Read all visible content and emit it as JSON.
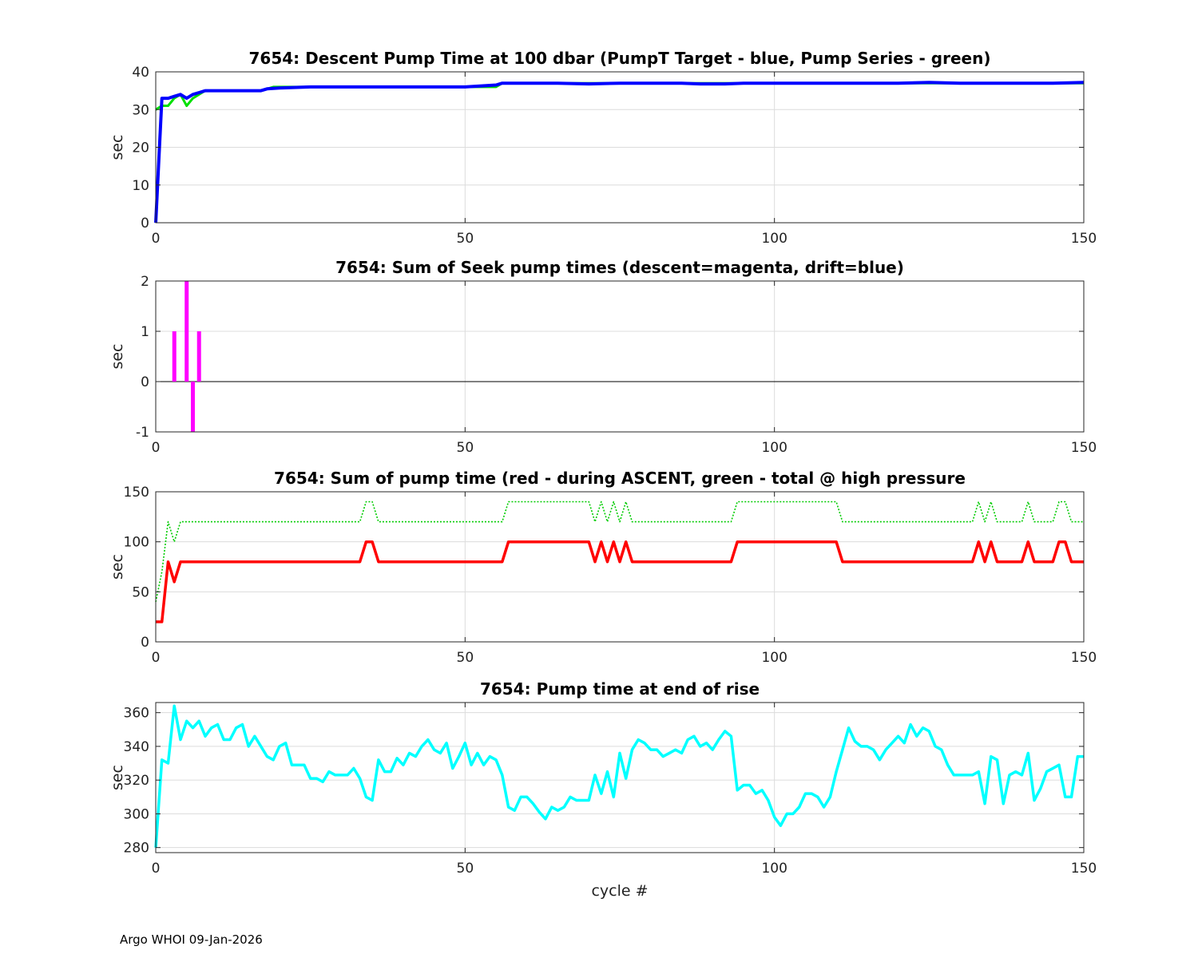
{
  "figure": {
    "footer": "Argo WHOI 09-Jan-2026"
  },
  "chart_data": [
    {
      "type": "line",
      "title": "7654: Descent Pump Time at 100 dbar (PumpT Target - blue, Pump Series - green)",
      "xlabel": "",
      "ylabel": "sec",
      "xlim": [
        0,
        150
      ],
      "ylim": [
        0,
        40
      ],
      "xticks": [
        0,
        50,
        100,
        150
      ],
      "yticks": [
        0,
        10,
        20,
        30,
        40
      ],
      "grid": true,
      "series": [
        {
          "color": "#00e000",
          "width": 3,
          "style": "solid",
          "x": [
            0,
            1,
            2,
            3,
            4,
            5,
            6,
            7,
            8,
            10,
            12,
            15,
            17,
            18,
            19,
            20,
            25,
            30,
            35,
            40,
            45,
            50,
            55,
            56,
            60,
            70,
            80,
            85,
            90,
            95,
            100,
            110,
            120,
            125,
            130,
            140,
            150
          ],
          "y": [
            30,
            31,
            31,
            33,
            34,
            31,
            33,
            34,
            35,
            35,
            35,
            35,
            35,
            35.5,
            36,
            36,
            36,
            36,
            36,
            36,
            36,
            36,
            36,
            37,
            37,
            37,
            37,
            37,
            37,
            37,
            37,
            37,
            37,
            37,
            37,
            37,
            37
          ]
        },
        {
          "color": "#0000ff",
          "width": 4,
          "style": "solid",
          "x": [
            0,
            1,
            2,
            3,
            4,
            5,
            6,
            7,
            8,
            10,
            12,
            15,
            17,
            18,
            20,
            25,
            30,
            35,
            40,
            45,
            50,
            55,
            56,
            60,
            65,
            70,
            75,
            80,
            85,
            88,
            90,
            92,
            95,
            100,
            105,
            110,
            115,
            120,
            125,
            130,
            135,
            140,
            145,
            150
          ],
          "y": [
            0,
            33,
            33,
            33.5,
            34,
            33,
            34,
            34.5,
            35,
            35,
            35,
            35,
            35,
            35.5,
            35.7,
            36,
            36,
            36,
            36,
            36,
            36,
            36.5,
            37,
            37,
            37,
            36.8,
            37,
            37,
            37,
            36.8,
            36.8,
            36.8,
            37,
            37,
            37,
            37,
            37,
            37,
            37.2,
            37,
            37,
            37,
            37,
            37.2
          ]
        }
      ]
    },
    {
      "type": "bar",
      "title": "7654: Sum of Seek pump times (descent=magenta, drift=blue)",
      "xlabel": "",
      "ylabel": "sec",
      "xlim": [
        0,
        150
      ],
      "ylim": [
        -1,
        2
      ],
      "xticks": [
        0,
        50,
        100,
        150
      ],
      "yticks": [
        -1,
        0,
        1,
        2
      ],
      "grid": true,
      "series": [
        {
          "color": "#ff00ff",
          "x": [
            3,
            5,
            6,
            7
          ],
          "y": [
            1,
            2,
            -1,
            1
          ]
        }
      ]
    },
    {
      "type": "line",
      "title": "7654: Sum of pump time (red - during ASCENT, green - total @ high pressure",
      "xlabel": "",
      "ylabel": "sec",
      "xlim": [
        0,
        150
      ],
      "ylim": [
        0,
        150
      ],
      "xticks": [
        0,
        50,
        100,
        150
      ],
      "yticks": [
        0,
        50,
        100,
        150
      ],
      "grid": true,
      "series": [
        {
          "color": "#00cc00",
          "width": 1.6,
          "style": "dotted",
          "x": [
            0,
            1,
            2,
            3,
            4,
            5,
            33,
            34,
            35,
            36,
            56,
            57,
            70,
            71,
            72,
            73,
            74,
            75,
            76,
            77,
            93,
            94,
            110,
            111,
            132,
            133,
            134,
            135,
            136,
            137,
            140,
            141,
            142,
            145,
            146,
            147,
            148,
            150
          ],
          "y": [
            40,
            70,
            120,
            100,
            120,
            120,
            120,
            140,
            140,
            120,
            120,
            140,
            140,
            120,
            140,
            120,
            140,
            120,
            140,
            120,
            120,
            140,
            140,
            120,
            120,
            140,
            120,
            140,
            120,
            120,
            120,
            140,
            120,
            120,
            140,
            140,
            120,
            120
          ]
        },
        {
          "color": "#ff0000",
          "width": 3.5,
          "style": "solid",
          "x": [
            0,
            1,
            2,
            3,
            4,
            5,
            33,
            34,
            35,
            36,
            56,
            57,
            70,
            71,
            72,
            73,
            74,
            75,
            76,
            77,
            93,
            94,
            110,
            111,
            132,
            133,
            134,
            135,
            136,
            137,
            140,
            141,
            142,
            145,
            146,
            147,
            148,
            150
          ],
          "y": [
            20,
            20,
            80,
            60,
            80,
            80,
            80,
            100,
            100,
            80,
            80,
            100,
            100,
            80,
            100,
            80,
            100,
            80,
            100,
            80,
            80,
            100,
            100,
            80,
            80,
            100,
            80,
            100,
            80,
            80,
            80,
            100,
            80,
            80,
            100,
            100,
            80,
            80
          ]
        }
      ]
    },
    {
      "type": "line",
      "title": "7654: Pump time at end of rise",
      "xlabel": "cycle #",
      "ylabel": "sec",
      "xlim": [
        0,
        150
      ],
      "ylim": [
        277,
        366
      ],
      "xticks": [
        0,
        50,
        100,
        150
      ],
      "yticks": [
        280,
        300,
        320,
        340,
        360
      ],
      "grid": true,
      "series": [
        {
          "color": "#00ffff",
          "width": 3.5,
          "style": "solid",
          "x": [
            0,
            1,
            2,
            3,
            4,
            5,
            6,
            7,
            8,
            9,
            10,
            11,
            12,
            13,
            14,
            15,
            16,
            17,
            18,
            19,
            20,
            21,
            22,
            23,
            24,
            25,
            26,
            27,
            28,
            29,
            30,
            31,
            32,
            33,
            34,
            35,
            36,
            37,
            38,
            39,
            40,
            41,
            42,
            43,
            44,
            45,
            46,
            47,
            48,
            49,
            50,
            51,
            52,
            53,
            54,
            55,
            56,
            57,
            58,
            59,
            60,
            61,
            62,
            63,
            64,
            65,
            66,
            67,
            68,
            69,
            70,
            71,
            72,
            73,
            74,
            75,
            76,
            77,
            78,
            79,
            80,
            81,
            82,
            83,
            84,
            85,
            86,
            87,
            88,
            89,
            90,
            91,
            92,
            93,
            94,
            95,
            96,
            97,
            98,
            99,
            100,
            101,
            102,
            103,
            104,
            105,
            106,
            107,
            108,
            109,
            110,
            111,
            112,
            113,
            114,
            115,
            116,
            117,
            118,
            119,
            120,
            121,
            122,
            123,
            124,
            125,
            126,
            127,
            128,
            129,
            130,
            131,
            132,
            133,
            134,
            135,
            136,
            137,
            138,
            139,
            140,
            141,
            142,
            143,
            144,
            145,
            146,
            147,
            148,
            149,
            150
          ],
          "y": [
            280,
            332,
            330,
            364,
            344,
            355,
            351,
            355,
            346,
            351,
            353,
            344,
            344,
            351,
            353,
            340,
            346,
            340,
            334,
            332,
            340,
            342,
            329,
            329,
            329,
            321,
            321,
            319,
            325,
            323,
            323,
            323,
            327,
            321,
            310,
            308,
            332,
            325,
            325,
            333,
            329,
            336,
            334,
            340,
            344,
            338,
            336,
            342,
            327,
            334,
            342,
            329,
            336,
            329,
            334,
            332,
            323,
            304,
            302,
            310,
            310,
            306,
            301,
            297,
            304,
            302,
            304,
            310,
            308,
            308,
            308,
            323,
            312,
            325,
            310,
            336,
            321,
            338,
            344,
            342,
            338,
            338,
            334,
            336,
            338,
            336,
            344,
            346,
            340,
            342,
            338,
            344,
            349,
            346,
            314,
            317,
            317,
            312,
            314,
            308,
            298,
            293,
            300,
            300,
            304,
            312,
            312,
            310,
            304,
            310,
            325,
            338,
            351,
            343,
            340,
            340,
            338,
            332,
            338,
            342,
            346,
            342,
            353,
            346,
            351,
            349,
            340,
            338,
            329,
            323,
            323,
            323,
            323,
            325,
            306,
            334,
            332,
            306,
            323,
            325,
            323,
            336,
            308,
            315,
            325,
            327,
            329,
            310,
            310,
            334,
            334
          ]
        }
      ]
    }
  ]
}
